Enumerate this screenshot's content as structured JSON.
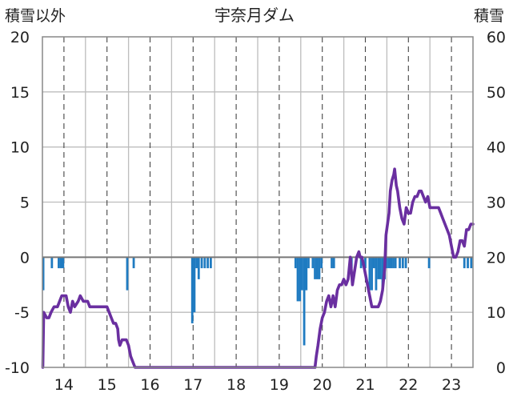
{
  "chart_data": {
    "type": "bar+line",
    "title": "宇奈月ダム",
    "left_axis_label": "積雪以外",
    "right_axis_label": "積雪",
    "left_ylim": [
      -10,
      20
    ],
    "right_ylim": [
      0,
      60
    ],
    "left_ticks": [
      "-10",
      "-5",
      "0",
      "5",
      "10",
      "15",
      "20"
    ],
    "right_ticks": [
      "0",
      "10",
      "20",
      "30",
      "40",
      "50",
      "60"
    ],
    "xlim": [
      13.5,
      23.5
    ],
    "x_ticks": [
      "14",
      "15",
      "16",
      "17",
      "18",
      "19",
      "20",
      "21",
      "22",
      "23"
    ],
    "grid": true,
    "bar_color": "#1f7bc1",
    "line_color": "#6a2fa0",
    "bars_left_axis": [
      [
        13.52,
        -3
      ],
      [
        13.72,
        -1
      ],
      [
        13.88,
        -1
      ],
      [
        13.93,
        -1
      ],
      [
        13.98,
        -1
      ],
      [
        15.47,
        -3
      ],
      [
        15.62,
        -1
      ],
      [
        16.98,
        -6
      ],
      [
        17.03,
        -5
      ],
      [
        17.08,
        -1
      ],
      [
        17.13,
        -2
      ],
      [
        17.2,
        -1
      ],
      [
        17.27,
        -1
      ],
      [
        17.34,
        -1
      ],
      [
        17.41,
        -1
      ],
      [
        19.38,
        -1
      ],
      [
        19.43,
        -4
      ],
      [
        19.48,
        -4
      ],
      [
        19.53,
        -3
      ],
      [
        19.58,
        -8
      ],
      [
        19.63,
        -3
      ],
      [
        19.68,
        -1
      ],
      [
        19.78,
        -1
      ],
      [
        19.83,
        -2
      ],
      [
        19.88,
        -2
      ],
      [
        19.93,
        -2
      ],
      [
        19.98,
        -1
      ],
      [
        20.22,
        -1
      ],
      [
        20.27,
        -1
      ],
      [
        20.68,
        -1
      ],
      [
        20.9,
        -1
      ],
      [
        21.0,
        -1
      ],
      [
        21.1,
        -3
      ],
      [
        21.15,
        -3
      ],
      [
        21.2,
        -1
      ],
      [
        21.25,
        -3
      ],
      [
        21.3,
        -2
      ],
      [
        21.35,
        -2
      ],
      [
        21.4,
        -3
      ],
      [
        21.45,
        -2
      ],
      [
        21.5,
        -1
      ],
      [
        21.55,
        -1
      ],
      [
        21.6,
        -1
      ],
      [
        21.65,
        -1
      ],
      [
        21.7,
        -1
      ],
      [
        21.8,
        -1
      ],
      [
        21.87,
        -1
      ],
      [
        21.94,
        -1
      ],
      [
        22.48,
        -1
      ],
      [
        23.3,
        -1
      ],
      [
        23.38,
        -1
      ],
      [
        23.46,
        -1
      ]
    ],
    "snow_depth_right_axis": [
      [
        13.51,
        0
      ],
      [
        13.53,
        10
      ],
      [
        13.6,
        9
      ],
      [
        13.65,
        9
      ],
      [
        13.7,
        10
      ],
      [
        13.77,
        11
      ],
      [
        13.85,
        11
      ],
      [
        13.9,
        12
      ],
      [
        13.95,
        13
      ],
      [
        14.05,
        13
      ],
      [
        14.1,
        11
      ],
      [
        14.15,
        10
      ],
      [
        14.2,
        12
      ],
      [
        14.25,
        11
      ],
      [
        14.33,
        12
      ],
      [
        14.38,
        13
      ],
      [
        14.45,
        12
      ],
      [
        14.55,
        12
      ],
      [
        14.6,
        11
      ],
      [
        15.0,
        11
      ],
      [
        15.05,
        10
      ],
      [
        15.1,
        9
      ],
      [
        15.15,
        8
      ],
      [
        15.2,
        8
      ],
      [
        15.25,
        7
      ],
      [
        15.27,
        5
      ],
      [
        15.3,
        4
      ],
      [
        15.35,
        5
      ],
      [
        15.45,
        5
      ],
      [
        15.5,
        4
      ],
      [
        15.55,
        2
      ],
      [
        15.6,
        1
      ],
      [
        15.65,
        0
      ],
      [
        15.7,
        0
      ],
      [
        19.6,
        0
      ],
      [
        19.83,
        0
      ],
      [
        19.86,
        2
      ],
      [
        19.9,
        4
      ],
      [
        19.95,
        7
      ],
      [
        20.0,
        9
      ],
      [
        20.05,
        10
      ],
      [
        20.1,
        12
      ],
      [
        20.15,
        13
      ],
      [
        20.2,
        11
      ],
      [
        20.25,
        13
      ],
      [
        20.3,
        11
      ],
      [
        20.35,
        14
      ],
      [
        20.4,
        15
      ],
      [
        20.45,
        15
      ],
      [
        20.5,
        16
      ],
      [
        20.55,
        15
      ],
      [
        20.6,
        16
      ],
      [
        20.65,
        20
      ],
      [
        20.7,
        15
      ],
      [
        20.8,
        20
      ],
      [
        20.85,
        21
      ],
      [
        20.88,
        20
      ],
      [
        20.92,
        20
      ],
      [
        20.95,
        19
      ],
      [
        21.0,
        17
      ],
      [
        21.05,
        15
      ],
      [
        21.1,
        13
      ],
      [
        21.15,
        11
      ],
      [
        21.3,
        11
      ],
      [
        21.35,
        12
      ],
      [
        21.4,
        14
      ],
      [
        21.45,
        18
      ],
      [
        21.48,
        24
      ],
      [
        21.55,
        28
      ],
      [
        21.58,
        32
      ],
      [
        21.62,
        34
      ],
      [
        21.66,
        35
      ],
      [
        21.68,
        36
      ],
      [
        21.72,
        33
      ],
      [
        21.75,
        32
      ],
      [
        21.8,
        29
      ],
      [
        21.85,
        27
      ],
      [
        21.9,
        26
      ],
      [
        21.95,
        29
      ],
      [
        22.0,
        28
      ],
      [
        22.05,
        28
      ],
      [
        22.1,
        30
      ],
      [
        22.15,
        31
      ],
      [
        22.2,
        31
      ],
      [
        22.25,
        32
      ],
      [
        22.3,
        32
      ],
      [
        22.35,
        31
      ],
      [
        22.4,
        30
      ],
      [
        22.45,
        31
      ],
      [
        22.5,
        29
      ],
      [
        22.7,
        29
      ],
      [
        22.75,
        28
      ],
      [
        22.8,
        27
      ],
      [
        22.85,
        26
      ],
      [
        22.9,
        25
      ],
      [
        22.95,
        24
      ],
      [
        23.0,
        22
      ],
      [
        23.05,
        20
      ],
      [
        23.1,
        20
      ],
      [
        23.15,
        21
      ],
      [
        23.2,
        23
      ],
      [
        23.25,
        23
      ],
      [
        23.3,
        22
      ],
      [
        23.35,
        25
      ],
      [
        23.4,
        25
      ],
      [
        23.45,
        26
      ],
      [
        23.5,
        26
      ]
    ]
  }
}
